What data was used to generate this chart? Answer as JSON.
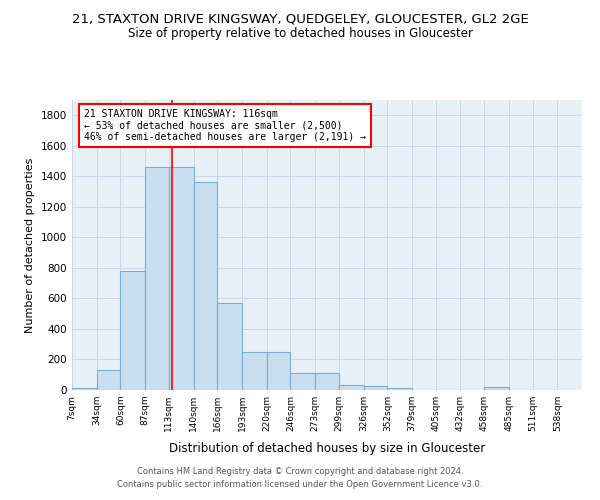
{
  "title_line1": "21, STAXTON DRIVE KINGSWAY, QUEDGELEY, GLOUCESTER, GL2 2GE",
  "title_line2": "Size of property relative to detached houses in Gloucester",
  "xlabel": "Distribution of detached houses by size in Gloucester",
  "ylabel": "Number of detached properties",
  "bin_labels": [
    "7sqm",
    "34sqm",
    "60sqm",
    "87sqm",
    "113sqm",
    "140sqm",
    "166sqm",
    "193sqm",
    "220sqm",
    "246sqm",
    "273sqm",
    "299sqm",
    "326sqm",
    "352sqm",
    "379sqm",
    "405sqm",
    "432sqm",
    "458sqm",
    "485sqm",
    "511sqm",
    "538sqm"
  ],
  "bin_edges": [
    7,
    34,
    60,
    87,
    113,
    140,
    166,
    193,
    220,
    246,
    273,
    299,
    326,
    352,
    379,
    405,
    432,
    458,
    485,
    511,
    538,
    565
  ],
  "bar_heights": [
    15,
    130,
    780,
    1460,
    1460,
    1360,
    570,
    250,
    250,
    110,
    110,
    35,
    25,
    15,
    0,
    0,
    0,
    20,
    0,
    0,
    0
  ],
  "bar_color": "#c9dff0",
  "bar_edge_color": "#7aaed0",
  "red_line_x": 116,
  "annotation_box_text": "21 STAXTON DRIVE KINGSWAY: 116sqm\n← 53% of detached houses are smaller (2,500)\n46% of semi-detached houses are larger (2,191) →",
  "ylim": [
    0,
    1900
  ],
  "xlim": [
    7,
    565
  ],
  "grid_color": "#c8d8e8",
  "background_color": "#e8f0f8",
  "footnote1": "Contains HM Land Registry data © Crown copyright and database right 2024.",
  "footnote2": "Contains public sector information licensed under the Open Government Licence v3.0.",
  "title1_fontsize": 9.5,
  "title2_fontsize": 8.5
}
